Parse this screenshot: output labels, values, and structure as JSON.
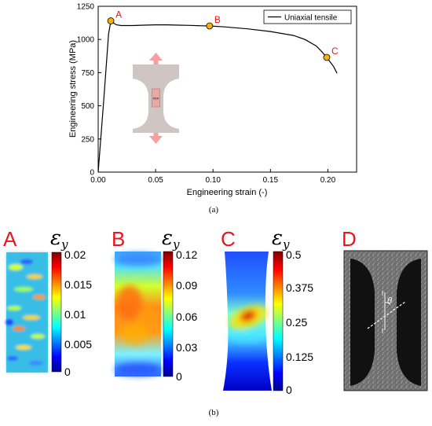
{
  "chart_data": {
    "type": "line",
    "xlabel": "Engineering strain (-)",
    "ylabel": "Engineering stress (MPa)",
    "xlim": [
      0,
      0.225
    ],
    "ylim": [
      0,
      1250
    ],
    "x_ticks": [
      "0.00",
      "0.05",
      "0.10",
      "0.15",
      "0.20"
    ],
    "y_ticks": [
      "0",
      "250",
      "500",
      "750",
      "1000",
      "1250"
    ],
    "series": [
      {
        "name": "Uniaxial tensile",
        "color": "#000000",
        "x": [
          0.0,
          0.005,
          0.009,
          0.011,
          0.013,
          0.016,
          0.02,
          0.03,
          0.04,
          0.05,
          0.06,
          0.07,
          0.08,
          0.09,
          0.097,
          0.11,
          0.13,
          0.15,
          0.17,
          0.18,
          0.19,
          0.195,
          0.199,
          0.202,
          0.205,
          0.208
        ],
        "y": [
          0,
          560,
          1040,
          1140,
          1125,
          1110,
          1105,
          1105,
          1108,
          1110,
          1110,
          1108,
          1106,
          1103,
          1102,
          1095,
          1080,
          1060,
          1030,
          1000,
          950,
          905,
          865,
          830,
          795,
          745
        ]
      }
    ],
    "points": [
      {
        "label": "A",
        "x": 0.011,
        "y": 1140
      },
      {
        "label": "B",
        "x": 0.097,
        "y": 1102
      },
      {
        "label": "C",
        "x": 0.199,
        "y": 865
      }
    ],
    "legend": "top-right",
    "grid": false
  },
  "inset": {
    "label": "ROI"
  },
  "caption_a": "(a)",
  "caption_b": "(b)",
  "panels": [
    {
      "letter": "A",
      "symbol": "ε",
      "subscript": "y",
      "ticks": [
        "0.02",
        "0.015",
        "0.01",
        "0.005",
        "0"
      ]
    },
    {
      "letter": "B",
      "symbol": "ε",
      "subscript": "y",
      "ticks": [
        "0.12",
        "0.09",
        "0.06",
        "0.03",
        "0"
      ]
    },
    {
      "letter": "C",
      "symbol": "ε",
      "subscript": "y",
      "ticks": [
        "0.5",
        "0.375",
        "0.25",
        "0.125",
        "0"
      ]
    },
    {
      "letter": "D",
      "theta": "θ",
      "mark_top": "l",
      "mark_bottom": "l"
    }
  ],
  "colors": {
    "marker": "#f5b400",
    "label": "#e8161b",
    "inset_fill": "#cfc6c4",
    "arrow": "#f4a0a0"
  }
}
